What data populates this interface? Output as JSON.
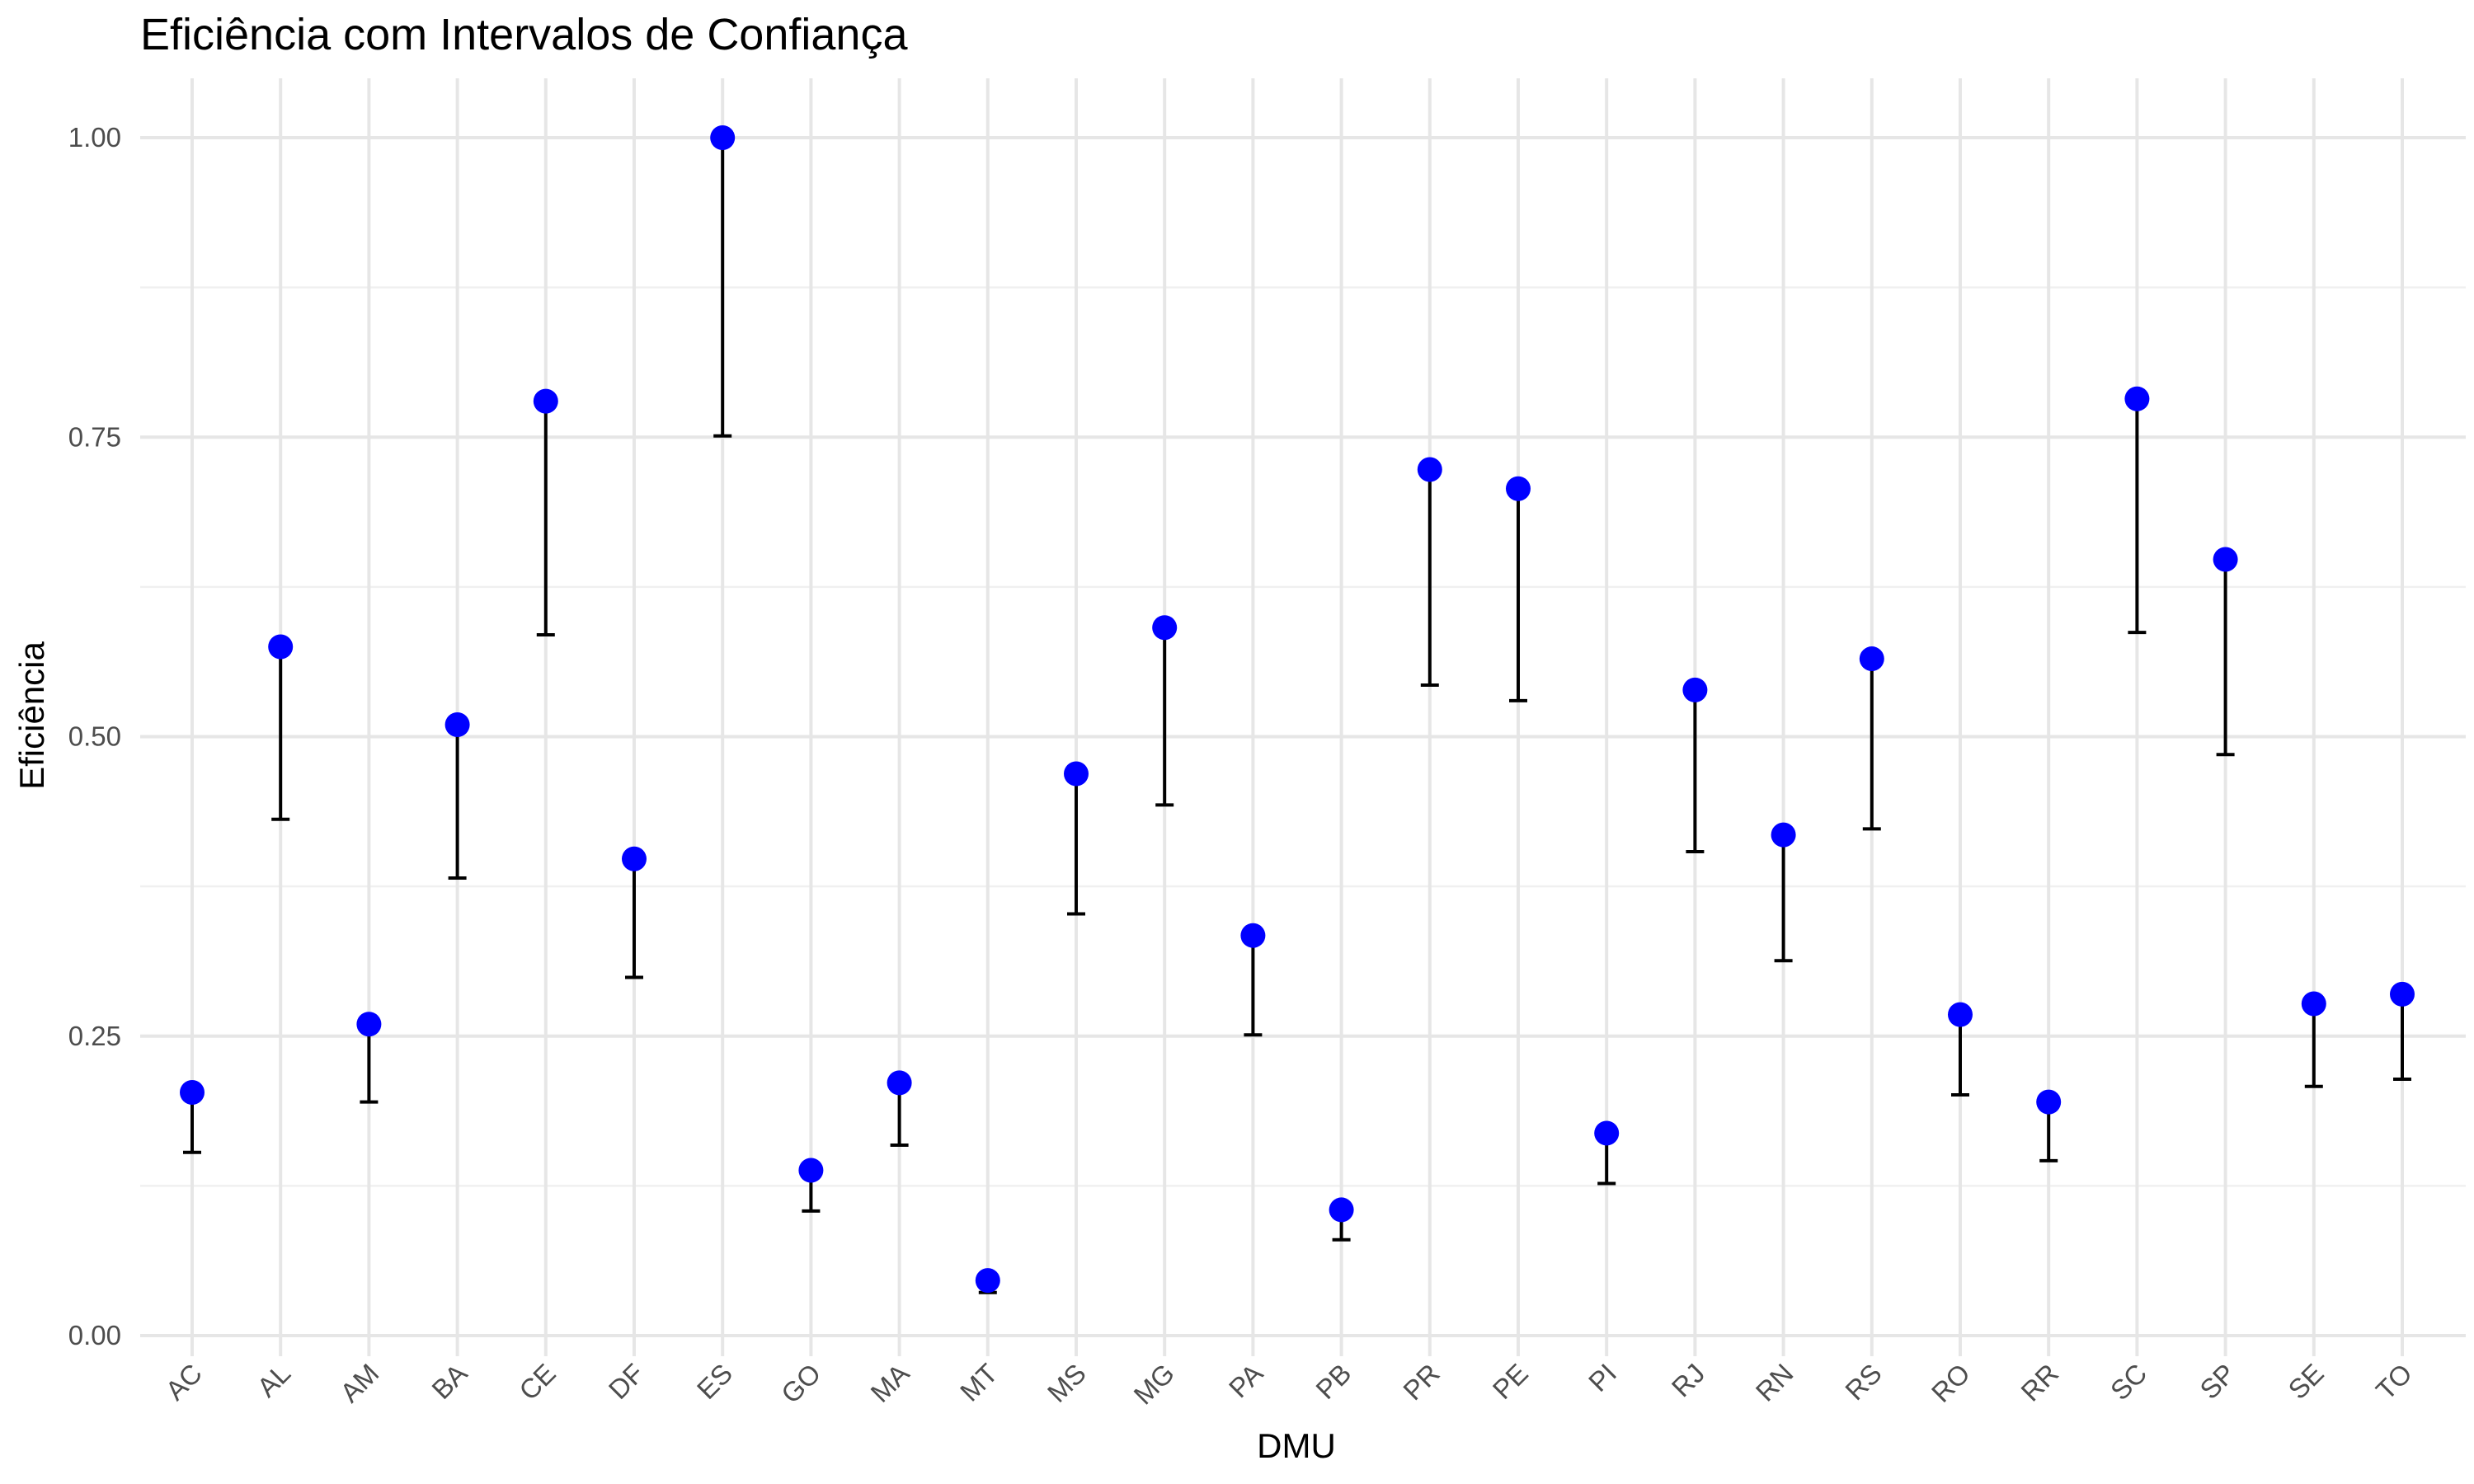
{
  "chart_data": {
    "type": "scatter",
    "title": "Eficiência com Intervalos de Confiança",
    "xlabel": "DMU",
    "ylabel": "Eficiência",
    "ylim": [
      0,
      1.03
    ],
    "y_ticks": [
      "0.00",
      "0.25",
      "0.50",
      "0.75",
      "1.00"
    ],
    "grid": true,
    "legend": "none",
    "point_color": "#0000FF",
    "errorbar_color": "#000000",
    "categories": [
      "AC",
      "AL",
      "AM",
      "BA",
      "CE",
      "DF",
      "ES",
      "GO",
      "MA",
      "MT",
      "MS",
      "MG",
      "PA",
      "PB",
      "PR",
      "PE",
      "PI",
      "RJ",
      "RN",
      "RS",
      "RO",
      "RR",
      "SC",
      "SP",
      "SE",
      "TO"
    ],
    "series": [
      {
        "values": [
          0.203,
          0.575,
          0.26,
          0.51,
          0.78,
          0.398,
          1.0,
          0.138,
          0.211,
          0.046,
          0.469,
          0.591,
          0.334,
          0.105,
          0.723,
          0.707,
          0.169,
          0.539,
          0.418,
          0.565,
          0.268,
          0.195,
          0.782,
          0.648,
          0.277,
          0.285
        ],
        "lower": [
          0.153,
          0.431,
          0.195,
          0.382,
          0.585,
          0.299,
          0.751,
          0.104,
          0.159,
          0.036,
          0.352,
          0.443,
          0.251,
          0.08,
          0.543,
          0.53,
          0.127,
          0.404,
          0.313,
          0.423,
          0.201,
          0.146,
          0.587,
          0.485,
          0.208,
          0.214
        ],
        "upper": [
          0.203,
          0.575,
          0.26,
          0.51,
          0.78,
          0.398,
          1.0,
          0.138,
          0.211,
          0.046,
          0.469,
          0.591,
          0.334,
          0.105,
          0.723,
          0.707,
          0.169,
          0.539,
          0.418,
          0.565,
          0.268,
          0.195,
          0.782,
          0.648,
          0.277,
          0.285
        ]
      }
    ]
  }
}
